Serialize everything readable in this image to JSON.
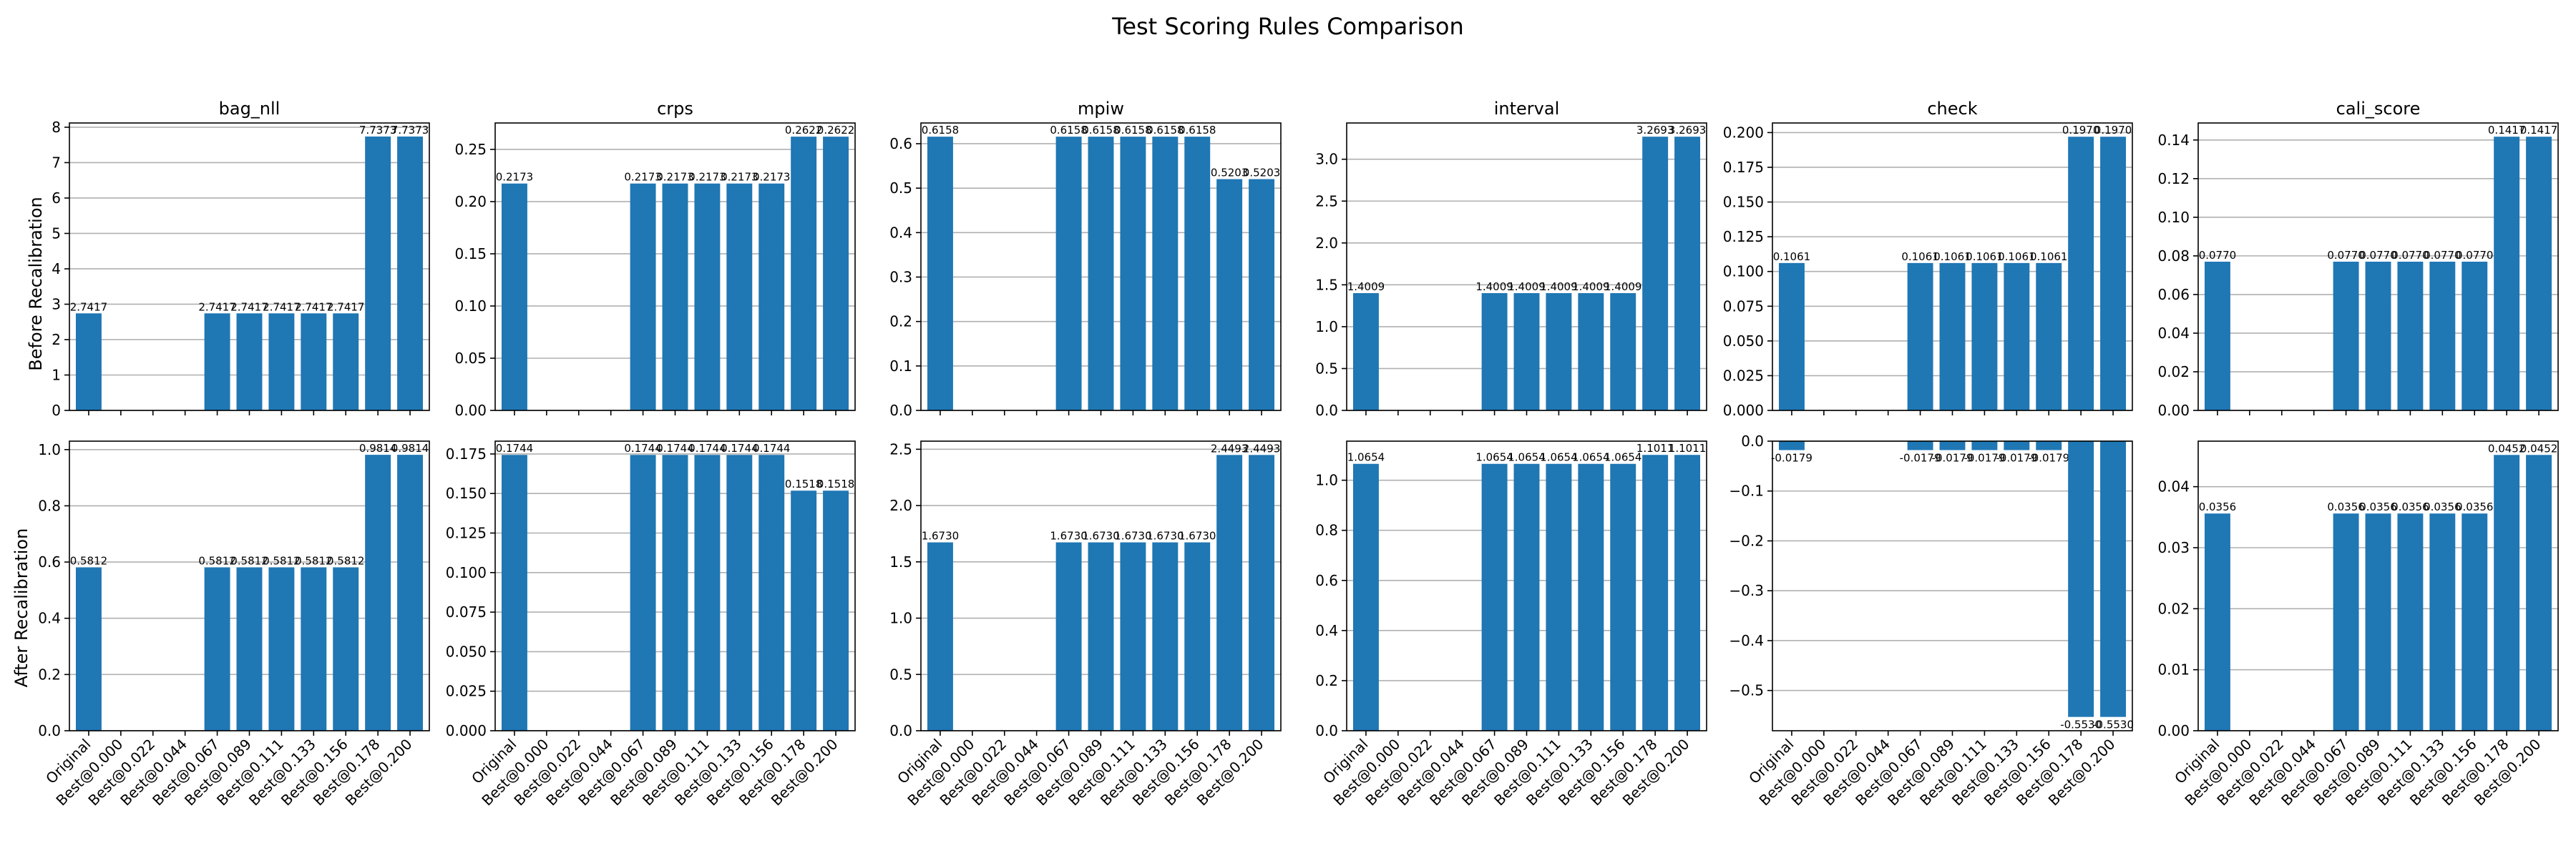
{
  "figure": {
    "title": "Test Scoring Rules Comparison",
    "row_labels": [
      "Before Recalibration",
      "After Recalibration"
    ],
    "bar_color": "#1f77b4",
    "grid_color": "#b0b0b0",
    "grid": "horizontal"
  },
  "chart_data": [
    {
      "type": "bar",
      "row": 0,
      "col": 0,
      "title": "bag_nll",
      "ylabel": "Before Recalibration",
      "categories": [
        "Original",
        "Best@0.000",
        "Best@0.022",
        "Best@0.044",
        "Best@0.067",
        "Best@0.089",
        "Best@0.111",
        "Best@0.133",
        "Best@0.156",
        "Best@0.178",
        "Best@0.200"
      ],
      "values": [
        2.7417,
        0,
        0,
        0,
        2.7417,
        2.7417,
        2.7417,
        2.7417,
        2.7417,
        7.7373,
        7.7373
      ],
      "labels": [
        "2.7417",
        "",
        "",
        "",
        "2.7417",
        "2.7417",
        "2.7417",
        "2.7417",
        "2.7417",
        "7.7373",
        "7.7373"
      ],
      "ylim": [
        0,
        8.12
      ],
      "yticks": [
        0,
        1,
        2,
        3,
        4,
        5,
        6,
        7,
        8
      ],
      "ytick_labels": [
        "0",
        "1",
        "2",
        "3",
        "4",
        "5",
        "6",
        "7",
        "8"
      ]
    },
    {
      "type": "bar",
      "row": 0,
      "col": 1,
      "title": "crps",
      "ylabel": "",
      "categories": [
        "Original",
        "Best@0.000",
        "Best@0.022",
        "Best@0.044",
        "Best@0.067",
        "Best@0.089",
        "Best@0.111",
        "Best@0.133",
        "Best@0.156",
        "Best@0.178",
        "Best@0.200"
      ],
      "values": [
        0.2173,
        0,
        0,
        0,
        0.2173,
        0.2173,
        0.2173,
        0.2173,
        0.2173,
        0.2622,
        0.2622
      ],
      "labels": [
        "0.2173",
        "",
        "",
        "",
        "0.2173",
        "0.2173",
        "0.2173",
        "0.2173",
        "0.2173",
        "0.2622",
        "0.2622"
      ],
      "ylim": [
        0,
        0.2753
      ],
      "yticks": [
        0,
        0.05,
        0.1,
        0.15,
        0.2,
        0.25
      ],
      "ytick_labels": [
        "0.00",
        "0.05",
        "0.10",
        "0.15",
        "0.20",
        "0.25"
      ]
    },
    {
      "type": "bar",
      "row": 0,
      "col": 2,
      "title": "mpiw",
      "ylabel": "",
      "categories": [
        "Original",
        "Best@0.000",
        "Best@0.022",
        "Best@0.044",
        "Best@0.067",
        "Best@0.089",
        "Best@0.111",
        "Best@0.133",
        "Best@0.156",
        "Best@0.178",
        "Best@0.200"
      ],
      "values": [
        0.6158,
        0,
        0,
        0,
        0.6158,
        0.6158,
        0.6158,
        0.6158,
        0.6158,
        0.5203,
        0.5203
      ],
      "labels": [
        "0.6158",
        "",
        "",
        "",
        "0.6158",
        "0.6158",
        "0.6158",
        "0.6158",
        "0.6158",
        "0.5203",
        "0.5203"
      ],
      "ylim": [
        0,
        0.6466
      ],
      "yticks": [
        0,
        0.1,
        0.2,
        0.3,
        0.4,
        0.5,
        0.6
      ],
      "ytick_labels": [
        "0.0",
        "0.1",
        "0.2",
        "0.3",
        "0.4",
        "0.5",
        "0.6"
      ]
    },
    {
      "type": "bar",
      "row": 0,
      "col": 3,
      "title": "interval",
      "ylabel": "",
      "categories": [
        "Original",
        "Best@0.000",
        "Best@0.022",
        "Best@0.044",
        "Best@0.067",
        "Best@0.089",
        "Best@0.111",
        "Best@0.133",
        "Best@0.156",
        "Best@0.178",
        "Best@0.200"
      ],
      "values": [
        1.4009,
        0,
        0,
        0,
        1.4009,
        1.4009,
        1.4009,
        1.4009,
        1.4009,
        3.2693,
        3.2693
      ],
      "labels": [
        "1.4009",
        "",
        "",
        "",
        "1.4009",
        "1.4009",
        "1.4009",
        "1.4009",
        "1.4009",
        "3.2693",
        "3.2693"
      ],
      "ylim": [
        0,
        3.433
      ],
      "yticks": [
        0,
        0.5,
        1,
        1.5,
        2,
        2.5,
        3
      ],
      "ytick_labels": [
        "0.0",
        "0.5",
        "1.0",
        "1.5",
        "2.0",
        "2.5",
        "3.0"
      ]
    },
    {
      "type": "bar",
      "row": 0,
      "col": 4,
      "title": "check",
      "ylabel": "",
      "categories": [
        "Original",
        "Best@0.000",
        "Best@0.022",
        "Best@0.044",
        "Best@0.067",
        "Best@0.089",
        "Best@0.111",
        "Best@0.133",
        "Best@0.156",
        "Best@0.178",
        "Best@0.200"
      ],
      "values": [
        0.1061,
        0,
        0,
        0,
        0.1061,
        0.1061,
        0.1061,
        0.1061,
        0.1061,
        0.197,
        0.197
      ],
      "labels": [
        "0.1061",
        "",
        "",
        "",
        "0.1061",
        "0.1061",
        "0.1061",
        "0.1061",
        "0.1061",
        "0.1970",
        "0.1970"
      ],
      "ylim": [
        0,
        0.2069
      ],
      "yticks": [
        0,
        0.025,
        0.05,
        0.075,
        0.1,
        0.125,
        0.15,
        0.175,
        0.2
      ],
      "ytick_labels": [
        "0.000",
        "0.025",
        "0.050",
        "0.075",
        "0.100",
        "0.125",
        "0.150",
        "0.175",
        "0.200"
      ]
    },
    {
      "type": "bar",
      "row": 0,
      "col": 5,
      "title": "cali_score",
      "ylabel": "",
      "categories": [
        "Original",
        "Best@0.000",
        "Best@0.022",
        "Best@0.044",
        "Best@0.067",
        "Best@0.089",
        "Best@0.111",
        "Best@0.133",
        "Best@0.156",
        "Best@0.178",
        "Best@0.200"
      ],
      "values": [
        0.077,
        0,
        0,
        0,
        0.077,
        0.077,
        0.077,
        0.077,
        0.077,
        0.1417,
        0.1417
      ],
      "labels": [
        "0.0770",
        "",
        "",
        "",
        "0.0770",
        "0.0770",
        "0.0770",
        "0.0770",
        "0.0770",
        "0.1417",
        "0.1417"
      ],
      "ylim": [
        0,
        0.1488
      ],
      "yticks": [
        0,
        0.02,
        0.04,
        0.06,
        0.08,
        0.1,
        0.12,
        0.14
      ],
      "ytick_labels": [
        "0.00",
        "0.02",
        "0.04",
        "0.06",
        "0.08",
        "0.10",
        "0.12",
        "0.14"
      ]
    },
    {
      "type": "bar",
      "row": 1,
      "col": 0,
      "title": "",
      "ylabel": "After Recalibration",
      "categories": [
        "Original",
        "Best@0.000",
        "Best@0.022",
        "Best@0.044",
        "Best@0.067",
        "Best@0.089",
        "Best@0.111",
        "Best@0.133",
        "Best@0.156",
        "Best@0.178",
        "Best@0.200"
      ],
      "values": [
        0.5812,
        0,
        0,
        0,
        0.5812,
        0.5812,
        0.5812,
        0.5812,
        0.5812,
        0.9814,
        0.9814
      ],
      "labels": [
        "0.5812",
        "",
        "",
        "",
        "0.5812",
        "0.5812",
        "0.5812",
        "0.5812",
        "0.5812",
        "0.9814",
        "0.9814"
      ],
      "ylim": [
        0,
        1.03
      ],
      "yticks": [
        0,
        0.2,
        0.4,
        0.6,
        0.8,
        1.0
      ],
      "ytick_labels": [
        "0.0",
        "0.2",
        "0.4",
        "0.6",
        "0.8",
        "1.0"
      ]
    },
    {
      "type": "bar",
      "row": 1,
      "col": 1,
      "title": "",
      "ylabel": "",
      "categories": [
        "Original",
        "Best@0.000",
        "Best@0.022",
        "Best@0.044",
        "Best@0.067",
        "Best@0.089",
        "Best@0.111",
        "Best@0.133",
        "Best@0.156",
        "Best@0.178",
        "Best@0.200"
      ],
      "values": [
        0.1744,
        0,
        0,
        0,
        0.1744,
        0.1744,
        0.1744,
        0.1744,
        0.1744,
        0.1518,
        0.1518
      ],
      "labels": [
        "0.1744",
        "",
        "",
        "",
        "0.1744",
        "0.1744",
        "0.1744",
        "0.1744",
        "0.1744",
        "0.1518",
        "0.1518"
      ],
      "ylim": [
        0,
        0.1831
      ],
      "yticks": [
        0,
        0.025,
        0.05,
        0.075,
        0.1,
        0.125,
        0.15,
        0.175
      ],
      "ytick_labels": [
        "0.000",
        "0.025",
        "0.050",
        "0.075",
        "0.100",
        "0.125",
        "0.150",
        "0.175"
      ]
    },
    {
      "type": "bar",
      "row": 1,
      "col": 2,
      "title": "",
      "ylabel": "",
      "categories": [
        "Original",
        "Best@0.000",
        "Best@0.022",
        "Best@0.044",
        "Best@0.067",
        "Best@0.089",
        "Best@0.111",
        "Best@0.133",
        "Best@0.156",
        "Best@0.178",
        "Best@0.200"
      ],
      "values": [
        1.673,
        0,
        0,
        0,
        1.673,
        1.673,
        1.673,
        1.673,
        1.673,
        2.4493,
        2.4493
      ],
      "labels": [
        "1.6730",
        "",
        "",
        "",
        "1.6730",
        "1.6730",
        "1.6730",
        "1.6730",
        "1.6730",
        "2.4493",
        "2.4493"
      ],
      "ylim": [
        0,
        2.572
      ],
      "yticks": [
        0,
        0.5,
        1,
        1.5,
        2,
        2.5
      ],
      "ytick_labels": [
        "0.0",
        "0.5",
        "1.0",
        "1.5",
        "2.0",
        "2.5"
      ]
    },
    {
      "type": "bar",
      "row": 1,
      "col": 3,
      "title": "",
      "ylabel": "",
      "categories": [
        "Original",
        "Best@0.000",
        "Best@0.022",
        "Best@0.044",
        "Best@0.067",
        "Best@0.089",
        "Best@0.111",
        "Best@0.133",
        "Best@0.156",
        "Best@0.178",
        "Best@0.200"
      ],
      "values": [
        1.0654,
        0,
        0,
        0,
        1.0654,
        1.0654,
        1.0654,
        1.0654,
        1.0654,
        1.1011,
        1.1011
      ],
      "labels": [
        "1.0654",
        "",
        "",
        "",
        "1.0654",
        "1.0654",
        "1.0654",
        "1.0654",
        "1.0654",
        "1.1011",
        "1.1011"
      ],
      "ylim": [
        0,
        1.156
      ],
      "yticks": [
        0,
        0.2,
        0.4,
        0.6,
        0.8,
        1.0
      ],
      "ytick_labels": [
        "0.0",
        "0.2",
        "0.4",
        "0.6",
        "0.8",
        "1.0"
      ]
    },
    {
      "type": "bar",
      "row": 1,
      "col": 4,
      "title": "",
      "ylabel": "",
      "categories": [
        "Original",
        "Best@0.000",
        "Best@0.022",
        "Best@0.044",
        "Best@0.067",
        "Best@0.089",
        "Best@0.111",
        "Best@0.133",
        "Best@0.156",
        "Best@0.178",
        "Best@0.200"
      ],
      "values": [
        -0.0179,
        0,
        0,
        0,
        -0.0179,
        -0.0179,
        -0.0179,
        -0.0179,
        -0.0179,
        -0.553,
        -0.553
      ],
      "labels": [
        "-0.0179",
        "",
        "",
        "",
        "-0.0179",
        "-0.0179",
        "-0.0179",
        "-0.0179",
        "-0.0179",
        "-0.5530",
        "-0.5530"
      ],
      "ylim": [
        -0.5807,
        0
      ],
      "yticks": [
        -0.5,
        -0.4,
        -0.3,
        -0.2,
        -0.1,
        0
      ],
      "ytick_labels": [
        "−0.5",
        "−0.4",
        "−0.3",
        "−0.2",
        "−0.1",
        "0.0"
      ]
    },
    {
      "type": "bar",
      "row": 1,
      "col": 5,
      "title": "",
      "ylabel": "",
      "categories": [
        "Original",
        "Best@0.000",
        "Best@0.022",
        "Best@0.044",
        "Best@0.067",
        "Best@0.089",
        "Best@0.111",
        "Best@0.133",
        "Best@0.156",
        "Best@0.178",
        "Best@0.200"
      ],
      "values": [
        0.0356,
        0,
        0,
        0,
        0.0356,
        0.0356,
        0.0356,
        0.0356,
        0.0356,
        0.0452,
        0.0452
      ],
      "labels": [
        "0.0356",
        "",
        "",
        "",
        "0.0356",
        "0.0356",
        "0.0356",
        "0.0356",
        "0.0356",
        "0.0452",
        "0.0452"
      ],
      "ylim": [
        0,
        0.04746
      ],
      "yticks": [
        0,
        0.01,
        0.02,
        0.03,
        0.04
      ],
      "ytick_labels": [
        "0.00",
        "0.01",
        "0.02",
        "0.03",
        "0.04"
      ]
    }
  ]
}
